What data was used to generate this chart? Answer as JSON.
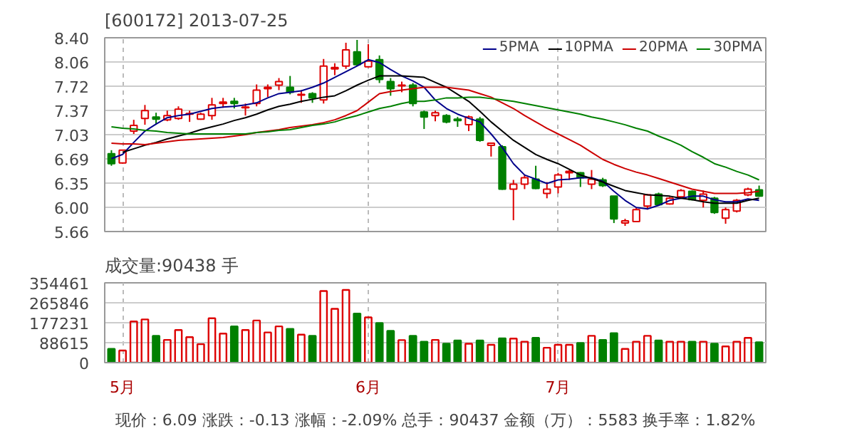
{
  "chart_data": [
    {
      "type": "candlestick",
      "title": "[600172] 2013-07-25",
      "categories": [
        null,
        null,
        null,
        null,
        null,
        null,
        null,
        null,
        null,
        null,
        null,
        null,
        null,
        null,
        null,
        null,
        null,
        null,
        null,
        null,
        null,
        null,
        null,
        null,
        null,
        null,
        null,
        null,
        null,
        null,
        null,
        null,
        null,
        null,
        null,
        null,
        null,
        null,
        null,
        null,
        null,
        null,
        null,
        null,
        null,
        null,
        null,
        null,
        null,
        null,
        null,
        null,
        null,
        null,
        null,
        null,
        null,
        null,
        null
      ],
      "ohlc": [
        [
          6.76,
          6.81,
          6.59,
          6.62
        ],
        [
          6.63,
          6.81,
          6.62,
          6.81
        ],
        [
          7.08,
          7.24,
          7.04,
          7.16
        ],
        [
          7.26,
          7.45,
          7.17,
          7.37
        ],
        [
          7.28,
          7.34,
          7.17,
          7.25
        ],
        [
          7.24,
          7.37,
          7.22,
          7.3
        ],
        [
          7.26,
          7.43,
          7.24,
          7.39
        ],
        [
          7.32,
          7.37,
          7.21,
          7.33
        ],
        [
          7.25,
          7.34,
          7.24,
          7.32
        ],
        [
          7.3,
          7.55,
          7.24,
          7.45
        ],
        [
          7.47,
          7.55,
          7.41,
          7.49
        ],
        [
          7.5,
          7.55,
          7.4,
          7.47
        ],
        [
          7.41,
          7.47,
          7.3,
          7.42
        ],
        [
          7.47,
          7.74,
          7.43,
          7.66
        ],
        [
          7.68,
          7.74,
          7.56,
          7.7
        ],
        [
          7.73,
          7.83,
          7.66,
          7.78
        ],
        [
          7.7,
          7.86,
          7.6,
          7.63
        ],
        [
          7.59,
          7.66,
          7.48,
          7.6
        ],
        [
          7.61,
          7.63,
          7.48,
          7.55
        ],
        [
          7.52,
          8.1,
          7.47,
          8.0
        ],
        [
          7.96,
          8.04,
          7.87,
          7.98
        ],
        [
          8.0,
          8.33,
          7.96,
          8.23
        ],
        [
          8.2,
          8.37,
          8.0,
          8.02
        ],
        [
          7.99,
          8.31,
          7.98,
          8.07
        ],
        [
          8.09,
          8.15,
          7.76,
          7.81
        ],
        [
          7.78,
          7.83,
          7.58,
          7.68
        ],
        [
          7.72,
          7.78,
          7.63,
          7.73
        ],
        [
          7.73,
          7.76,
          7.43,
          7.47
        ],
        [
          7.35,
          7.37,
          7.11,
          7.28
        ],
        [
          7.3,
          7.37,
          7.22,
          7.34
        ],
        [
          7.3,
          7.32,
          7.19,
          7.21
        ],
        [
          7.25,
          7.28,
          7.14,
          7.23
        ],
        [
          7.17,
          7.3,
          7.08,
          7.28
        ],
        [
          7.25,
          7.28,
          6.93,
          6.95
        ],
        [
          6.88,
          6.91,
          6.72,
          6.91
        ],
        [
          6.86,
          6.88,
          6.25,
          6.26
        ],
        [
          6.26,
          6.39,
          5.82,
          6.33
        ],
        [
          6.33,
          6.46,
          6.26,
          6.42
        ],
        [
          6.4,
          6.59,
          6.26,
          6.27
        ],
        [
          6.2,
          6.36,
          6.13,
          6.26
        ],
        [
          6.29,
          6.49,
          6.2,
          6.46
        ],
        [
          6.49,
          6.53,
          6.39,
          6.51
        ],
        [
          6.49,
          6.5,
          6.29,
          6.42
        ],
        [
          6.33,
          6.53,
          6.26,
          6.4
        ],
        [
          6.39,
          6.42,
          6.29,
          6.31
        ],
        [
          6.16,
          6.16,
          5.78,
          5.84
        ],
        [
          5.78,
          5.84,
          5.74,
          5.81
        ],
        [
          5.8,
          6.0,
          5.8,
          5.97
        ],
        [
          6.02,
          6.19,
          5.97,
          6.18
        ],
        [
          6.19,
          6.21,
          6.03,
          6.04
        ],
        [
          6.05,
          6.15,
          6.04,
          6.13
        ],
        [
          6.15,
          6.26,
          6.13,
          6.24
        ],
        [
          6.23,
          6.24,
          6.1,
          6.11
        ],
        [
          6.1,
          6.24,
          6.0,
          6.19
        ],
        [
          6.13,
          6.15,
          5.91,
          5.93
        ],
        [
          5.85,
          6.0,
          5.77,
          5.97
        ],
        [
          5.95,
          6.12,
          5.93,
          6.1
        ],
        [
          6.18,
          6.28,
          6.16,
          6.26
        ],
        [
          6.25,
          6.31,
          6.15,
          6.16
        ]
      ],
      "colors": [
        "#008000",
        "#dd0000",
        "#dd0000",
        "#dd0000",
        "#008000",
        "#dd0000",
        "#dd0000",
        "#dd0000",
        "#dd0000",
        "#dd0000",
        "#dd0000",
        "#008000",
        "#dd0000",
        "#dd0000",
        "#dd0000",
        "#dd0000",
        "#008000",
        "#dd0000",
        "#008000",
        "#dd0000",
        "#dd0000",
        "#dd0000",
        "#008000",
        "#dd0000",
        "#008000",
        "#008000",
        "#dd0000",
        "#008000",
        "#008000",
        "#dd0000",
        "#008000",
        "#008000",
        "#dd0000",
        "#008000",
        "#dd0000",
        "#008000",
        "#dd0000",
        "#dd0000",
        "#008000",
        "#dd0000",
        "#dd0000",
        "#dd0000",
        "#008000",
        "#dd0000",
        "#008000",
        "#008000",
        "#dd0000",
        "#dd0000",
        "#dd0000",
        "#008000",
        "#dd0000",
        "#dd0000",
        "#008000",
        "#dd0000",
        "#008000",
        "#dd0000",
        "#dd0000",
        "#dd0000",
        "#008000"
      ],
      "series": [
        {
          "type": "line",
          "name": "5PMA",
          "color": "#00008b",
          "values": [
            6.69,
            6.75,
            6.92,
            7.08,
            7.18,
            7.27,
            7.3,
            7.32,
            7.36,
            7.4,
            7.42,
            7.43,
            7.45,
            7.48,
            7.55,
            7.61,
            7.63,
            7.65,
            7.7,
            7.76,
            7.84,
            7.92,
            8.0,
            8.09,
            8.05,
            7.95,
            7.86,
            7.79,
            7.7,
            7.52,
            7.4,
            7.32,
            7.26,
            7.21,
            7.04,
            6.85,
            6.62,
            6.46,
            6.4,
            6.34,
            6.39,
            6.4,
            6.42,
            6.42,
            6.37,
            6.23,
            6.1,
            6.0,
            5.98,
            6.03,
            6.1,
            6.13,
            6.16,
            6.16,
            6.11,
            6.08,
            6.08,
            6.12,
            6.1
          ]
        },
        {
          "type": "line",
          "name": "10PMA",
          "color": "#000000",
          "values": [
            null,
            6.78,
            6.83,
            6.88,
            6.92,
            6.97,
            7.01,
            7.05,
            7.1,
            7.14,
            7.18,
            7.23,
            7.27,
            7.32,
            7.38,
            7.43,
            7.46,
            7.5,
            7.53,
            7.56,
            7.58,
            7.65,
            7.73,
            7.8,
            7.86,
            7.86,
            7.86,
            7.85,
            7.84,
            7.77,
            7.7,
            7.6,
            7.5,
            7.36,
            7.21,
            7.08,
            6.95,
            6.85,
            6.75,
            6.68,
            6.62,
            6.54,
            6.46,
            6.41,
            6.36,
            6.3,
            6.24,
            6.21,
            6.18,
            6.17,
            6.16,
            6.13,
            6.11,
            6.08,
            6.06,
            6.06,
            6.06,
            6.1,
            6.13
          ]
        },
        {
          "type": "line",
          "name": "20PMA",
          "color": "#cc0000",
          "values": [
            6.91,
            6.9,
            6.9,
            6.89,
            6.91,
            6.93,
            6.95,
            6.96,
            6.97,
            6.98,
            6.99,
            7.01,
            7.03,
            7.06,
            7.08,
            7.1,
            7.13,
            7.15,
            7.17,
            7.2,
            7.24,
            7.3,
            7.37,
            7.49,
            7.61,
            7.64,
            7.66,
            7.68,
            7.7,
            7.7,
            7.7,
            7.68,
            7.66,
            7.61,
            7.56,
            7.48,
            7.4,
            7.3,
            7.21,
            7.12,
            7.04,
            6.96,
            6.88,
            6.78,
            6.68,
            6.61,
            6.55,
            6.5,
            6.46,
            6.41,
            6.36,
            6.31,
            6.26,
            6.23,
            6.2,
            6.2,
            6.2,
            6.21,
            6.23
          ]
        },
        {
          "type": "line",
          "name": "30PMA",
          "color": "#008000",
          "values": [
            7.14,
            7.12,
            7.11,
            7.09,
            7.08,
            7.06,
            7.05,
            7.04,
            7.04,
            7.04,
            7.04,
            7.04,
            7.04,
            7.06,
            7.07,
            7.09,
            7.1,
            7.13,
            7.16,
            7.18,
            7.21,
            7.26,
            7.3,
            7.35,
            7.4,
            7.43,
            7.47,
            7.5,
            7.5,
            7.52,
            7.55,
            7.55,
            7.56,
            7.56,
            7.54,
            7.52,
            7.5,
            7.47,
            7.44,
            7.41,
            7.38,
            7.35,
            7.32,
            7.28,
            7.25,
            7.21,
            7.17,
            7.12,
            7.08,
            7.01,
            6.95,
            6.88,
            6.79,
            6.71,
            6.62,
            6.57,
            6.51,
            6.46,
            6.39
          ]
        }
      ],
      "ylim": [
        5.66,
        8.4
      ],
      "yticks": [
        5.66,
        {
          "value": 6.0,
          "label": "6.00"
        },
        6.35,
        6.69,
        7.03,
        7.37,
        7.72,
        8.06,
        {
          "value": 8.4,
          "label": "8.40"
        }
      ],
      "grid": true,
      "legend": "top right"
    },
    {
      "type": "bar",
      "title": "成交量:90438 手",
      "categories": [
        null,
        "5月",
        null,
        null,
        null,
        null,
        null,
        null,
        null,
        null,
        null,
        null,
        null,
        null,
        null,
        null,
        null,
        null,
        null,
        null,
        null,
        null,
        null,
        "6月",
        null,
        null,
        null,
        null,
        null,
        null,
        null,
        null,
        null,
        null,
        null,
        null,
        null,
        null,
        null,
        null,
        "7月",
        null,
        null,
        null,
        null,
        null,
        null,
        null,
        null,
        null,
        null,
        null,
        null,
        null,
        null,
        null,
        null,
        null,
        null
      ],
      "values": [
        61000,
        54000,
        183000,
        192000,
        119000,
        101000,
        145000,
        113000,
        82000,
        197000,
        129000,
        161000,
        145000,
        187000,
        134000,
        161000,
        150000,
        124000,
        119000,
        318000,
        239000,
        323000,
        218000,
        201000,
        176000,
        141000,
        100000,
        119000,
        93000,
        101000,
        84000,
        98000,
        84000,
        98000,
        79000,
        108000,
        107000,
        93000,
        110000,
        66000,
        79000,
        79000,
        87000,
        119000,
        101000,
        131000,
        61000,
        93000,
        119000,
        98000,
        93000,
        93000,
        93000,
        93000,
        84000,
        72000,
        93000,
        110000,
        90000
      ],
      "colors": [
        "#008000",
        "#dd0000",
        "#dd0000",
        "#dd0000",
        "#008000",
        "#dd0000",
        "#dd0000",
        "#dd0000",
        "#dd0000",
        "#dd0000",
        "#dd0000",
        "#008000",
        "#dd0000",
        "#dd0000",
        "#dd0000",
        "#dd0000",
        "#008000",
        "#dd0000",
        "#008000",
        "#dd0000",
        "#dd0000",
        "#dd0000",
        "#008000",
        "#dd0000",
        "#008000",
        "#008000",
        "#dd0000",
        "#008000",
        "#008000",
        "#dd0000",
        "#008000",
        "#008000",
        "#dd0000",
        "#008000",
        "#dd0000",
        "#008000",
        "#dd0000",
        "#dd0000",
        "#008000",
        "#dd0000",
        "#dd0000",
        "#dd0000",
        "#008000",
        "#dd0000",
        "#008000",
        "#008000",
        "#dd0000",
        "#dd0000",
        "#dd0000",
        "#008000",
        "#dd0000",
        "#dd0000",
        "#008000",
        "#dd0000",
        "#008000",
        "#dd0000",
        "#dd0000",
        "#dd0000",
        "#008000"
      ],
      "ylim": [
        0,
        354461
      ],
      "yticks": [
        0,
        88615,
        177231,
        265846,
        354461
      ],
      "grid": true,
      "annotations": [
        "现价：6.09 涨跌：-0.13 涨幅：-2.09% 总手：90437 金额（万）：5583 换手率：1.82%"
      ]
    }
  ]
}
